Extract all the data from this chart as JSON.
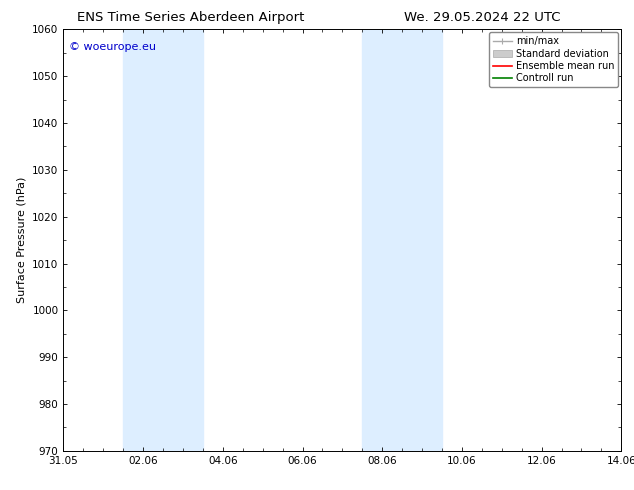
{
  "title_left": "ENS Time Series Aberdeen Airport",
  "title_right": "We. 29.05.2024 22 UTC",
  "ylabel": "Surface Pressure (hPa)",
  "ylim": [
    970,
    1060
  ],
  "yticks": [
    970,
    980,
    990,
    1000,
    1010,
    1020,
    1030,
    1040,
    1050,
    1060
  ],
  "xtick_labels": [
    "31.05",
    "02.06",
    "04.06",
    "06.06",
    "08.06",
    "10.06",
    "12.06",
    "14.06"
  ],
  "xtick_positions": [
    0,
    2,
    4,
    6,
    8,
    10,
    12,
    14
  ],
  "xlim": [
    0,
    14
  ],
  "shaded_bands": [
    {
      "x_start": 1.5,
      "x_end": 3.5,
      "color": "#ddeeff"
    },
    {
      "x_start": 7.5,
      "x_end": 9.5,
      "color": "#ddeeff"
    }
  ],
  "legend_entries": [
    {
      "label": "min/max",
      "color": "#aaaaaa",
      "lw": 1.5
    },
    {
      "label": "Standard deviation",
      "color": "#cccccc",
      "lw": 6
    },
    {
      "label": "Ensemble mean run",
      "color": "#ff0000",
      "lw": 1.5
    },
    {
      "label": "Controll run",
      "color": "#008000",
      "lw": 1.5
    }
  ],
  "watermark_text": "© woeurope.eu",
  "watermark_color": "#0000cc",
  "bg_color": "#ffffff",
  "plot_bg_color": "#ffffff",
  "title_fontsize": 9.5,
  "ylabel_fontsize": 8,
  "tick_fontsize": 7.5,
  "legend_fontsize": 7,
  "watermark_fontsize": 8,
  "font_family": "DejaVu Sans"
}
